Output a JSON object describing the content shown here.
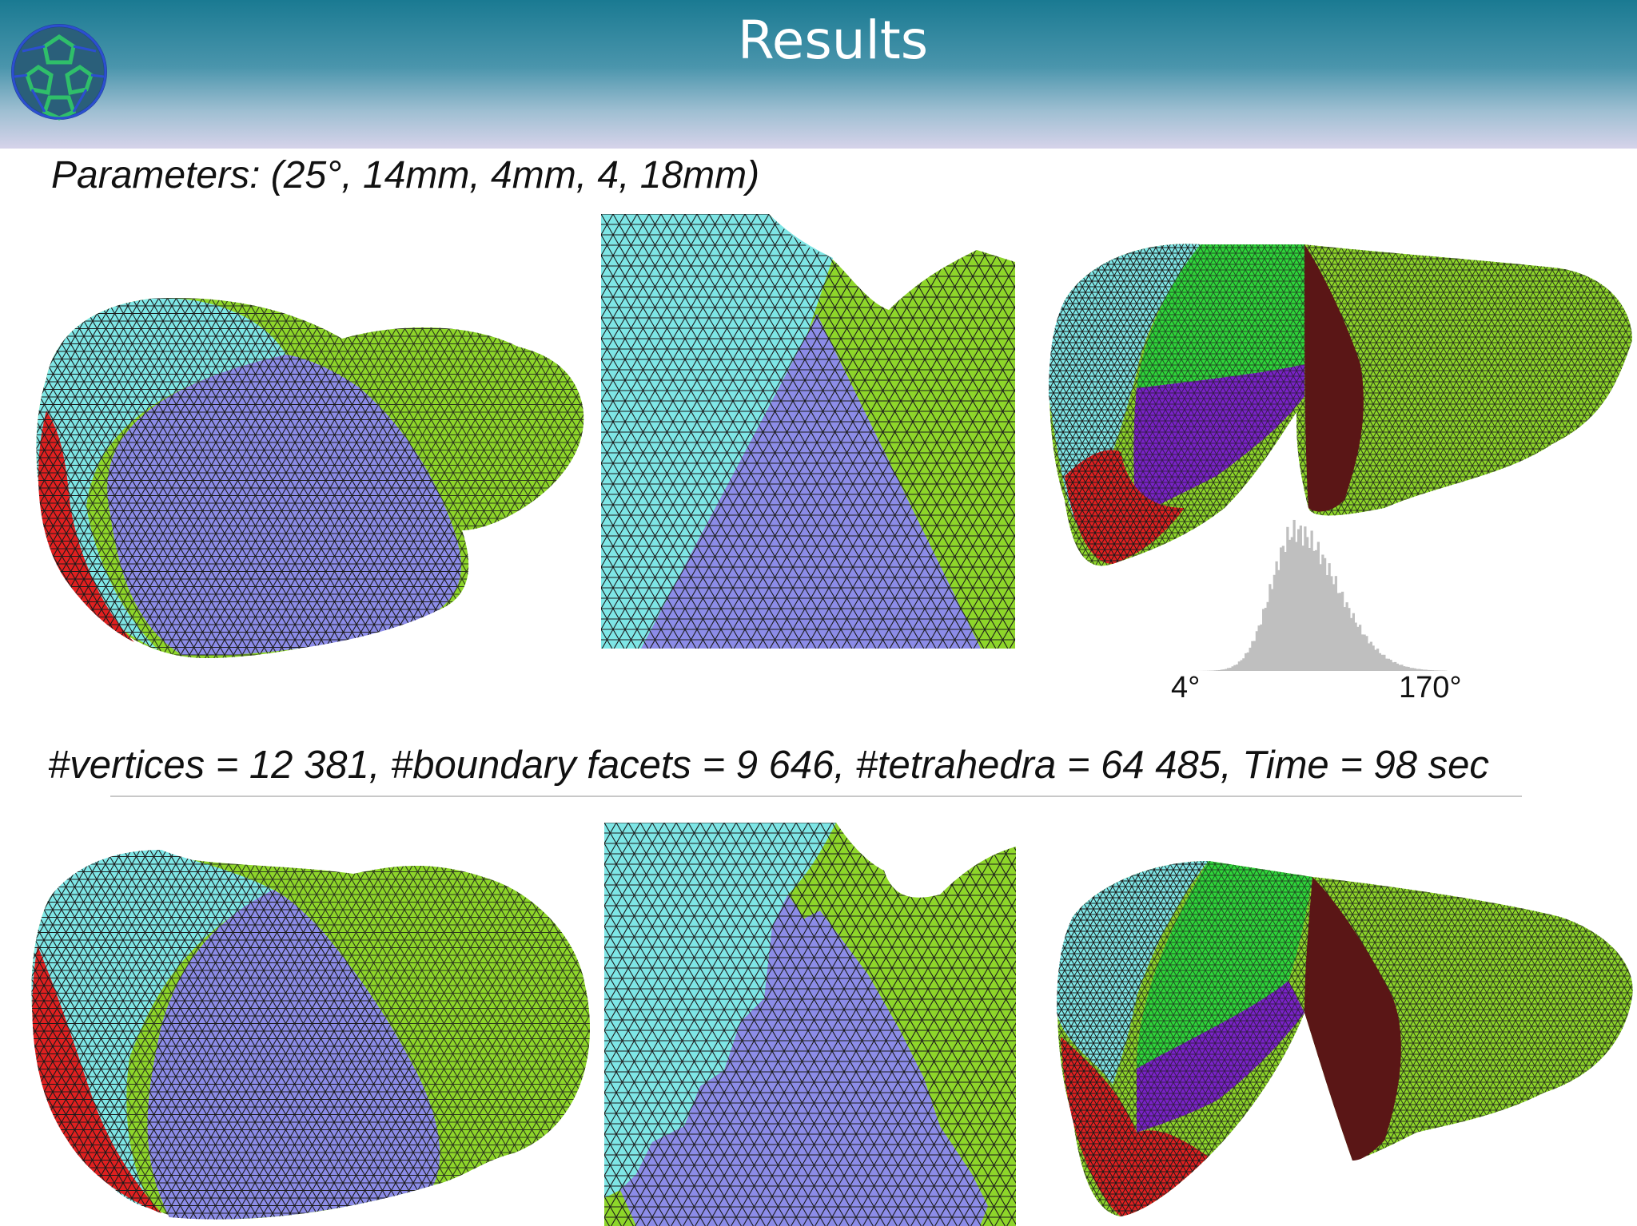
{
  "slide": {
    "title": "Results"
  },
  "parameters_text": "Parameters: (25°, 14mm, 4mm, 4, 18mm)",
  "stats_text": "#vertices = 12 381, #boundary facets = 9 646, #tetrahedra = 64 485, Time = 98 sec",
  "histogram": {
    "min_label": "4°",
    "max_label": "170°",
    "bar_color": "#bfbfbf"
  },
  "colors": {
    "cyan": "#7ee6e6",
    "blue": "#8c8ce8",
    "green": "#8ed62a",
    "bright_green": "#2fd63a",
    "red": "#e02020",
    "purple": "#7a22c8",
    "maroon": "#5a1616",
    "header": "#1a7a92"
  },
  "icons": {
    "logo": "mesh-sphere-logo-icon"
  }
}
